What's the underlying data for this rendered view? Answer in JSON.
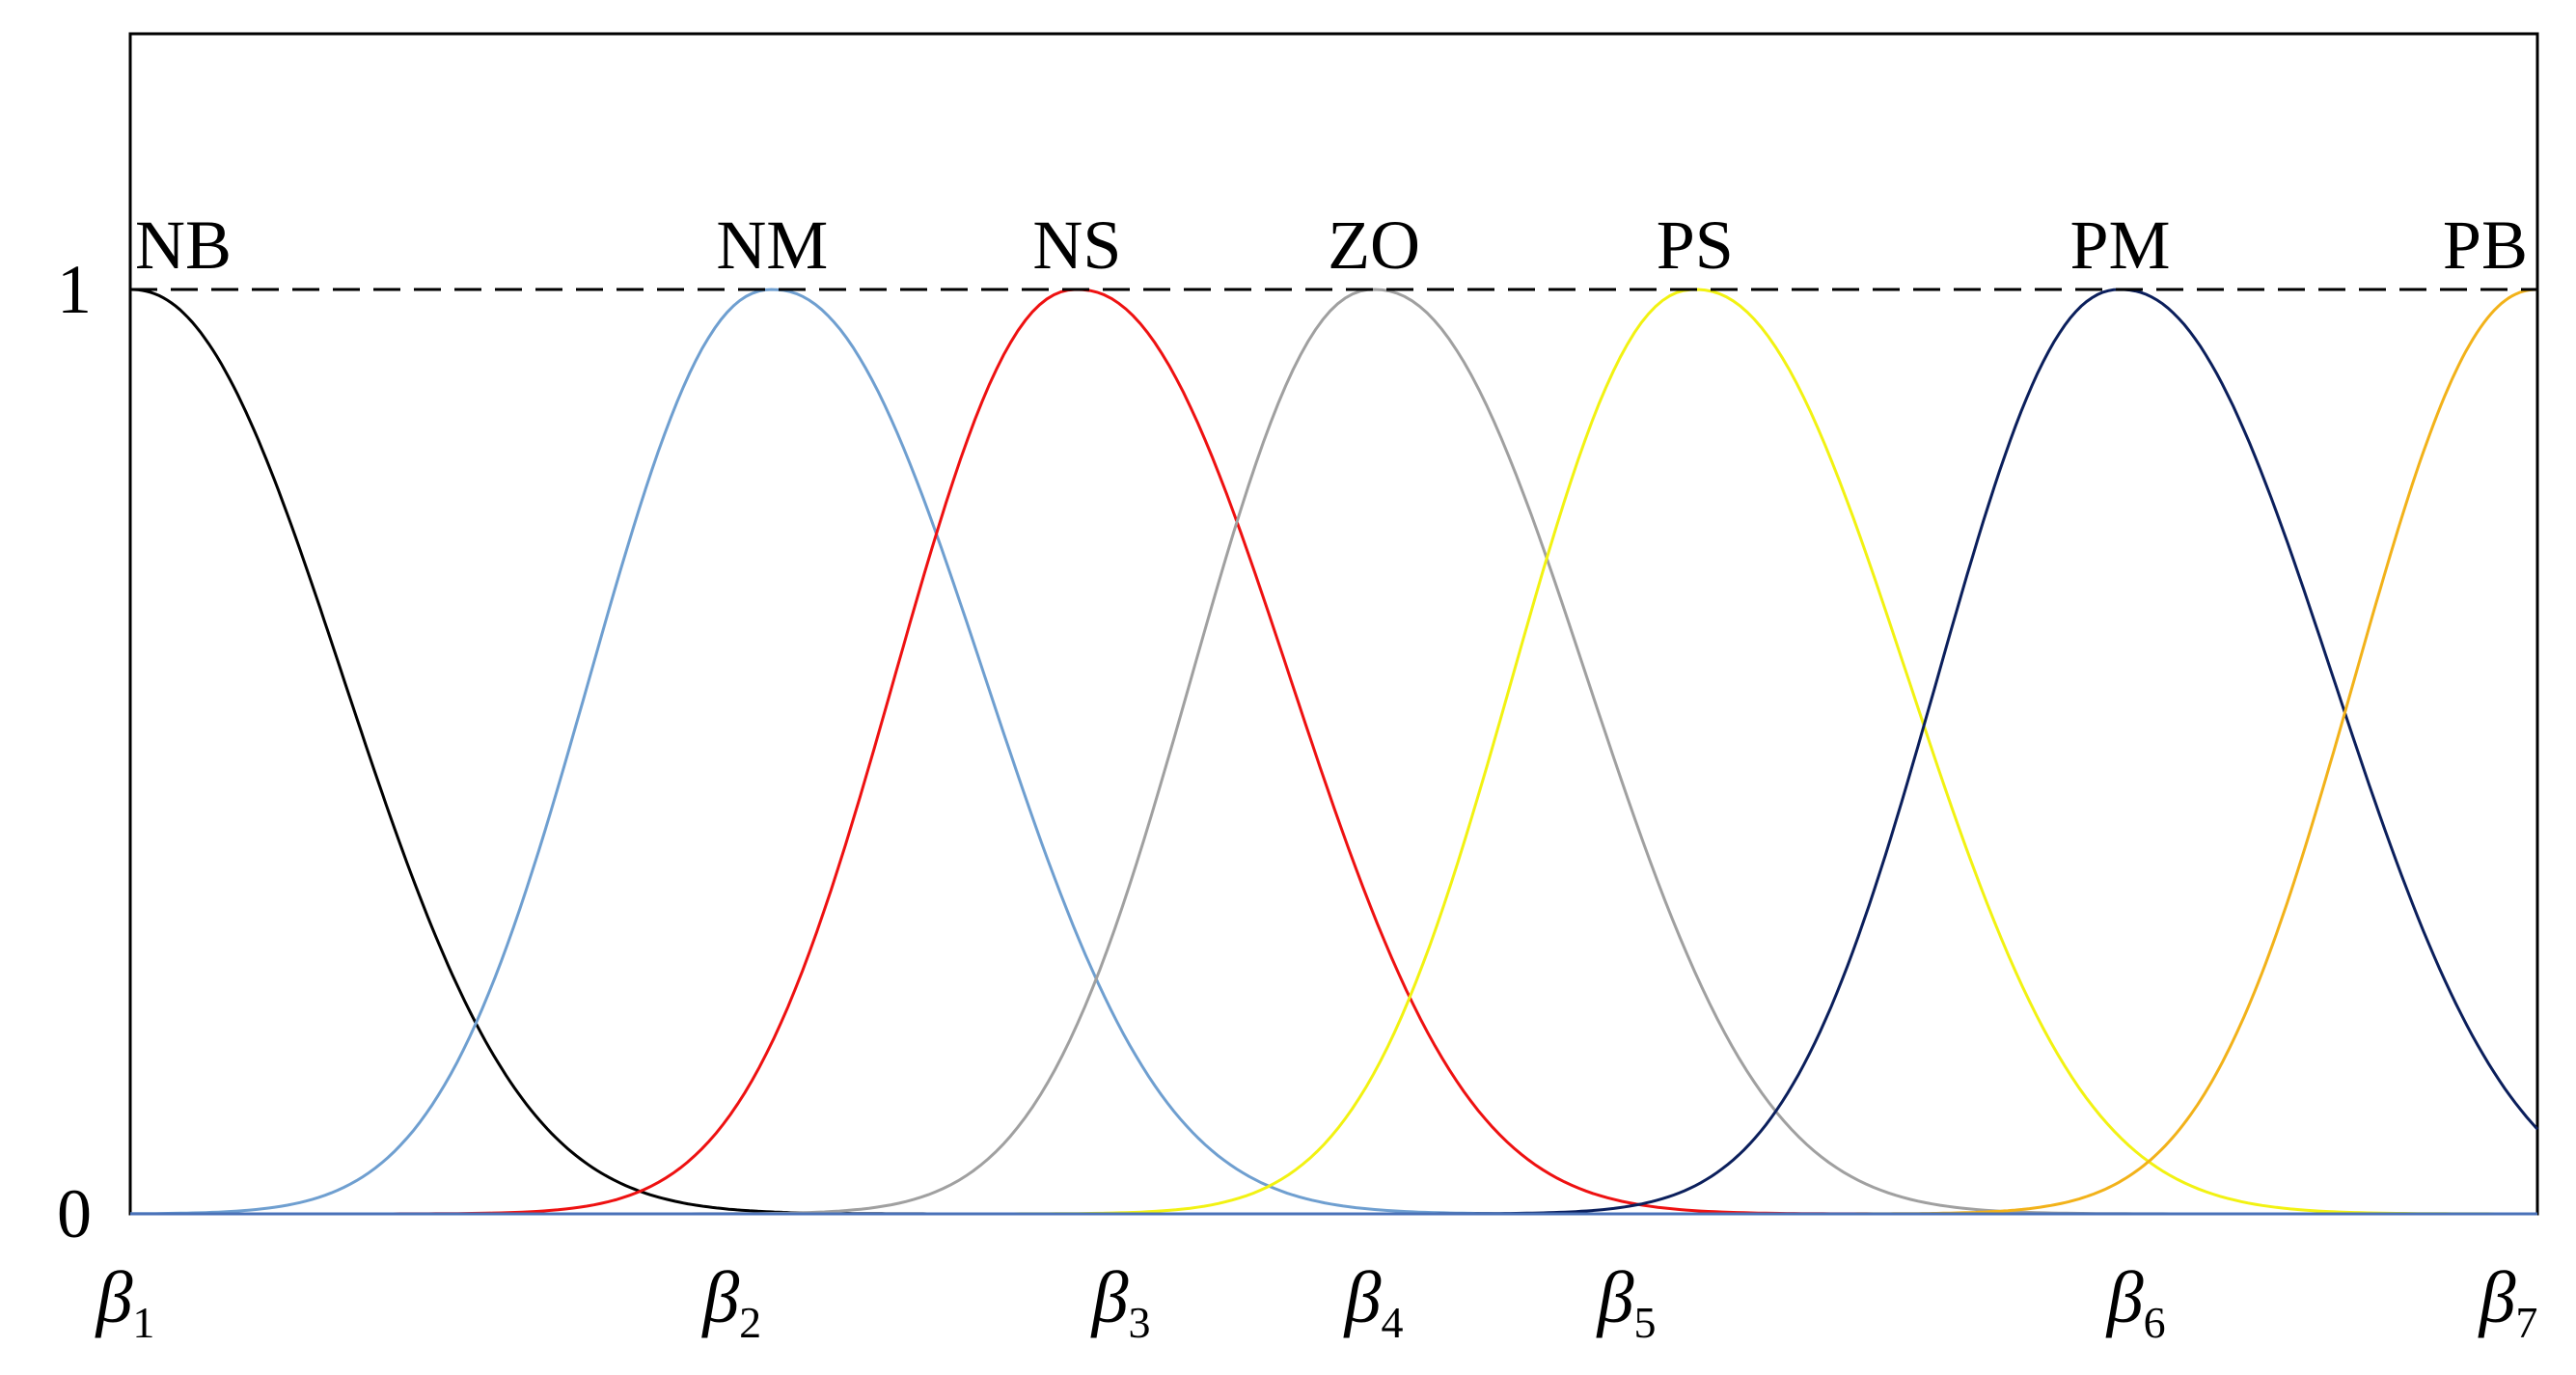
{
  "chart_data": {
    "type": "line",
    "title": "",
    "xlabel": "",
    "ylabel": "",
    "ylim": [
      0,
      1
    ],
    "xlim": [
      1,
      7
    ],
    "y_ticks": [
      "0",
      "1"
    ],
    "x_ticks": [
      {
        "value": 1.0,
        "symbol": "β",
        "sub": "1"
      },
      {
        "value": 2.5,
        "symbol": "β",
        "sub": "2"
      },
      {
        "value": 3.47,
        "symbol": "β",
        "sub": "3"
      },
      {
        "value": 4.1,
        "symbol": "β",
        "sub": "4"
      },
      {
        "value": 4.73,
        "symbol": "β",
        "sub": "5"
      },
      {
        "value": 6.0,
        "symbol": "β",
        "sub": "6"
      },
      {
        "value": 7.0,
        "symbol": "β",
        "sub": "7"
      }
    ],
    "grid": false,
    "reference_line": {
      "y": 1,
      "style": "dashed",
      "color": "#000000"
    },
    "series": [
      {
        "name": "NB",
        "color": "#000000",
        "peak": 1.0,
        "width_left": 0.6,
        "width_right": 0.7,
        "domain": [
          1.0,
          3.47
        ]
      },
      {
        "name": "NM",
        "color": "#6f9fd0",
        "peak": 2.6,
        "width_left": 0.6,
        "width_right": 0.7,
        "domain": [
          1.0,
          4.76
        ]
      },
      {
        "name": "NS",
        "color": "#ee1111",
        "peak": 3.36,
        "width_left": 0.6,
        "width_right": 0.7,
        "domain": [
          1.26,
          5.56
        ]
      },
      {
        "name": "ZO",
        "color": "#a0a0a0",
        "peak": 4.1,
        "width_left": 0.6,
        "width_right": 0.7,
        "domain": [
          1.97,
          6.42
        ]
      },
      {
        "name": "PS",
        "color": "#f2f212",
        "peak": 4.9,
        "width_left": 0.6,
        "width_right": 0.7,
        "domain": [
          2.78,
          7.0
        ]
      },
      {
        "name": "PM",
        "color": "#0b1f5c",
        "peak": 5.96,
        "width_left": 0.6,
        "width_right": 0.7,
        "domain": [
          3.75,
          7.0
        ]
      },
      {
        "name": "PB",
        "color": "#f2b21a",
        "peak": 7.0,
        "width_left": 0.6,
        "width_right": 0.7,
        "domain": [
          4.86,
          7.0
        ]
      }
    ]
  }
}
